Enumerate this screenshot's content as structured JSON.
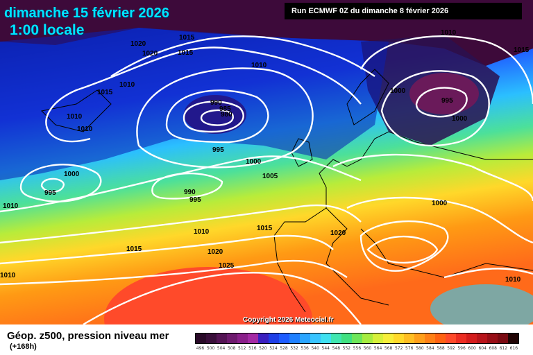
{
  "header": {
    "date_title": "dimanche 15 février 2026",
    "time_title": "1:00 locale",
    "run_label": "Run ECMWF 0Z du dimanche 8 février 2026"
  },
  "map": {
    "copyright": "Copyright 2026 Meteociel.fr",
    "isobar_labels": [
      "1015",
      "1020",
      "1020",
      "1015",
      "1015",
      "1010",
      "1010",
      "1010",
      "1010",
      "1010",
      "990",
      "985",
      "980",
      "995",
      "1000",
      "1000",
      "995",
      "1005",
      "990",
      "995",
      "1000",
      "1010",
      "1015",
      "1020",
      "1020",
      "1015",
      "1025",
      "1010",
      "1000",
      "995",
      "1000",
      "1010",
      "1015",
      "1010"
    ],
    "colors": {
      "trough": "#3d0a3a",
      "deep_blue": "#0a1fb0",
      "cyan": "#28c0ff",
      "green": "#52d58a",
      "yellow": "#f2ef3a",
      "orange": "#ff9a14",
      "red": "#ff4a2a",
      "isobar": "#ffffff"
    }
  },
  "legend": {
    "title": "Géop. z500, pression niveau mer",
    "subtitle": "(+168h)",
    "scale_values": [
      "496",
      "500",
      "504",
      "508",
      "512",
      "516",
      "520",
      "524",
      "528",
      "532",
      "536",
      "540",
      "544",
      "548",
      "552",
      "556",
      "560",
      "564",
      "568",
      "572",
      "576",
      "580",
      "584",
      "588",
      "592",
      "596",
      "600",
      "604",
      "608",
      "612",
      "616"
    ],
    "scale_colors": [
      "#2a0a28",
      "#3a0f3a",
      "#541454",
      "#6e1a6e",
      "#8a1f8a",
      "#a42aa4",
      "#3b1fbf",
      "#1f3fe6",
      "#1e5cff",
      "#1f80ff",
      "#2aa5ff",
      "#38c4ff",
      "#3fe0f0",
      "#40e6b0",
      "#40e080",
      "#6ee65a",
      "#a6ec40",
      "#d6f03a",
      "#f6ee3a",
      "#ffd92a",
      "#ffbe22",
      "#ff9f1a",
      "#ff8016",
      "#ff6212",
      "#ff4a2a",
      "#ec2d22",
      "#d41c1c",
      "#b8141a",
      "#980e16",
      "#7a0a12",
      "#200404"
    ]
  }
}
